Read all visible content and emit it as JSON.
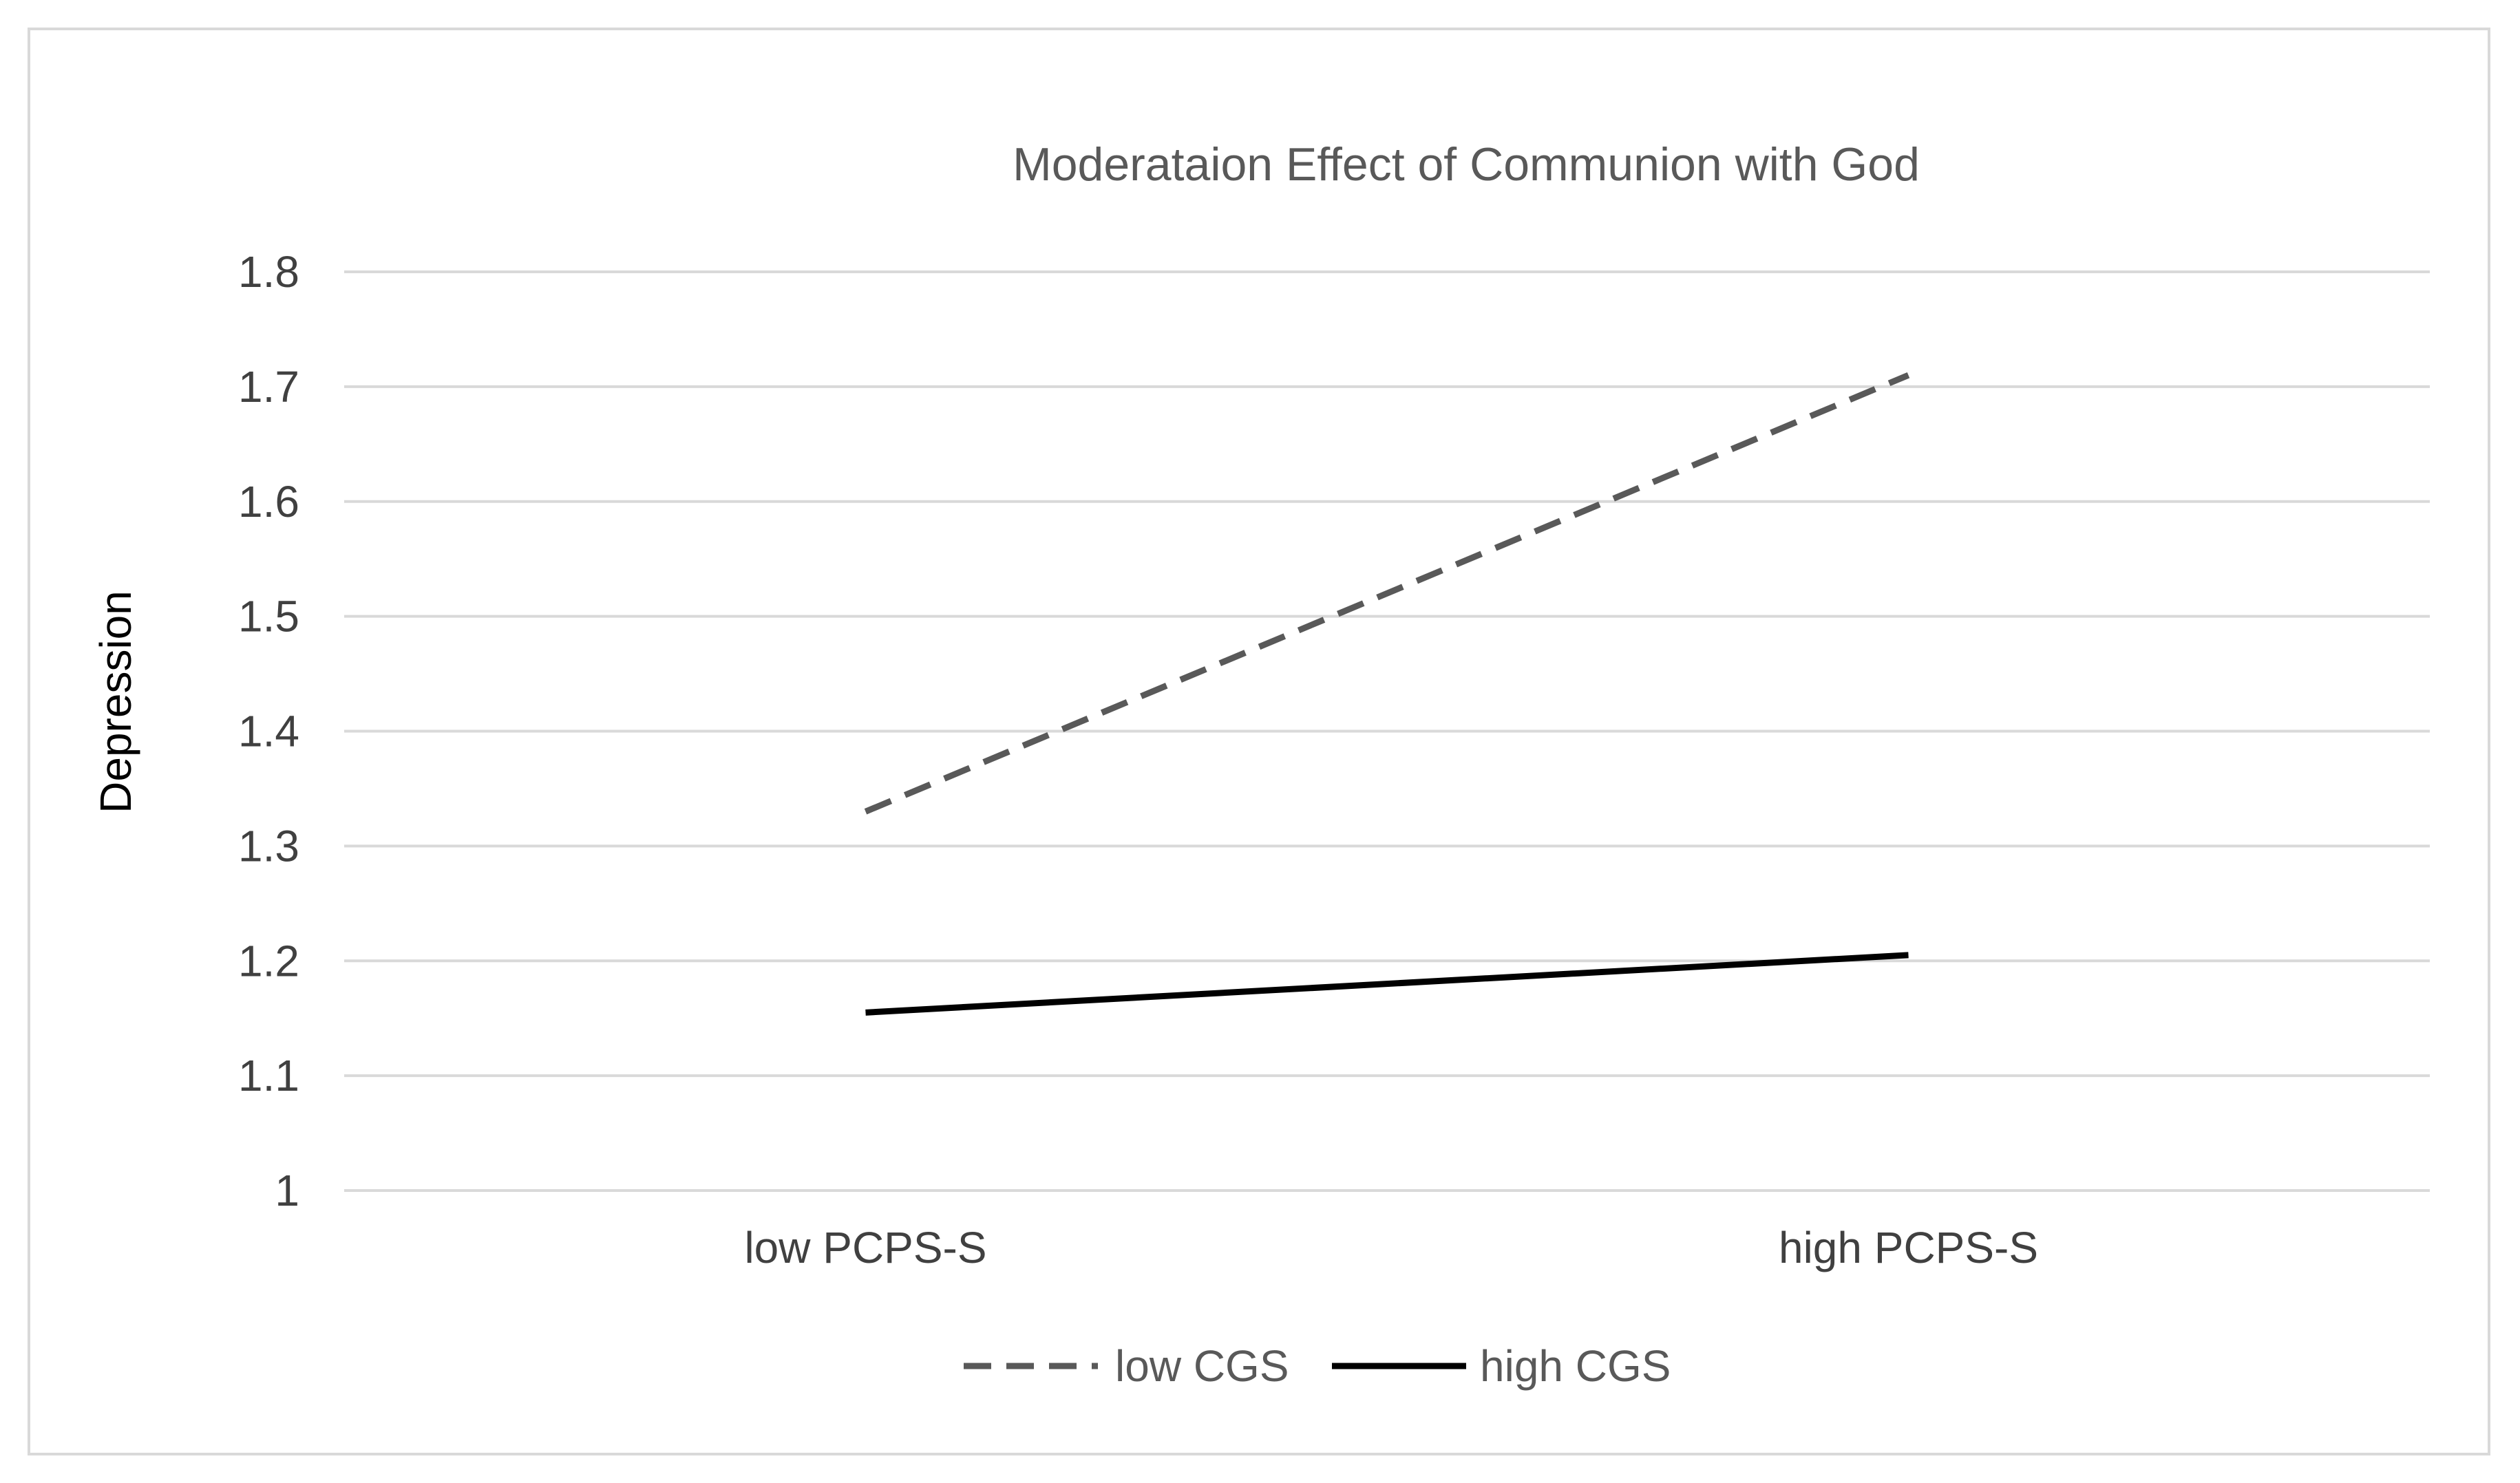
{
  "chart_data": {
    "type": "line",
    "title": "Moderataion Effect of Communion with God",
    "xlabel": "",
    "ylabel": "Depression",
    "categories": [
      "low PCPS-S",
      "high PCPS-S"
    ],
    "ylim": [
      1,
      1.8
    ],
    "yticks": [
      "1",
      "1.1",
      "1.2",
      "1.3",
      "1.4",
      "1.5",
      "1.6",
      "1.7",
      "1.8"
    ],
    "ytick_values": [
      1,
      1.1,
      1.2,
      1.3,
      1.4,
      1.5,
      1.6,
      1.7,
      1.8
    ],
    "grid": true,
    "legend_position": "bottom",
    "series": [
      {
        "name": "low CGS",
        "values": [
          1.33,
          1.71
        ],
        "style": "dashed",
        "color": "#595959"
      },
      {
        "name": "high CGS",
        "values": [
          1.155,
          1.205
        ],
        "style": "solid",
        "color": "#000000"
      }
    ]
  }
}
